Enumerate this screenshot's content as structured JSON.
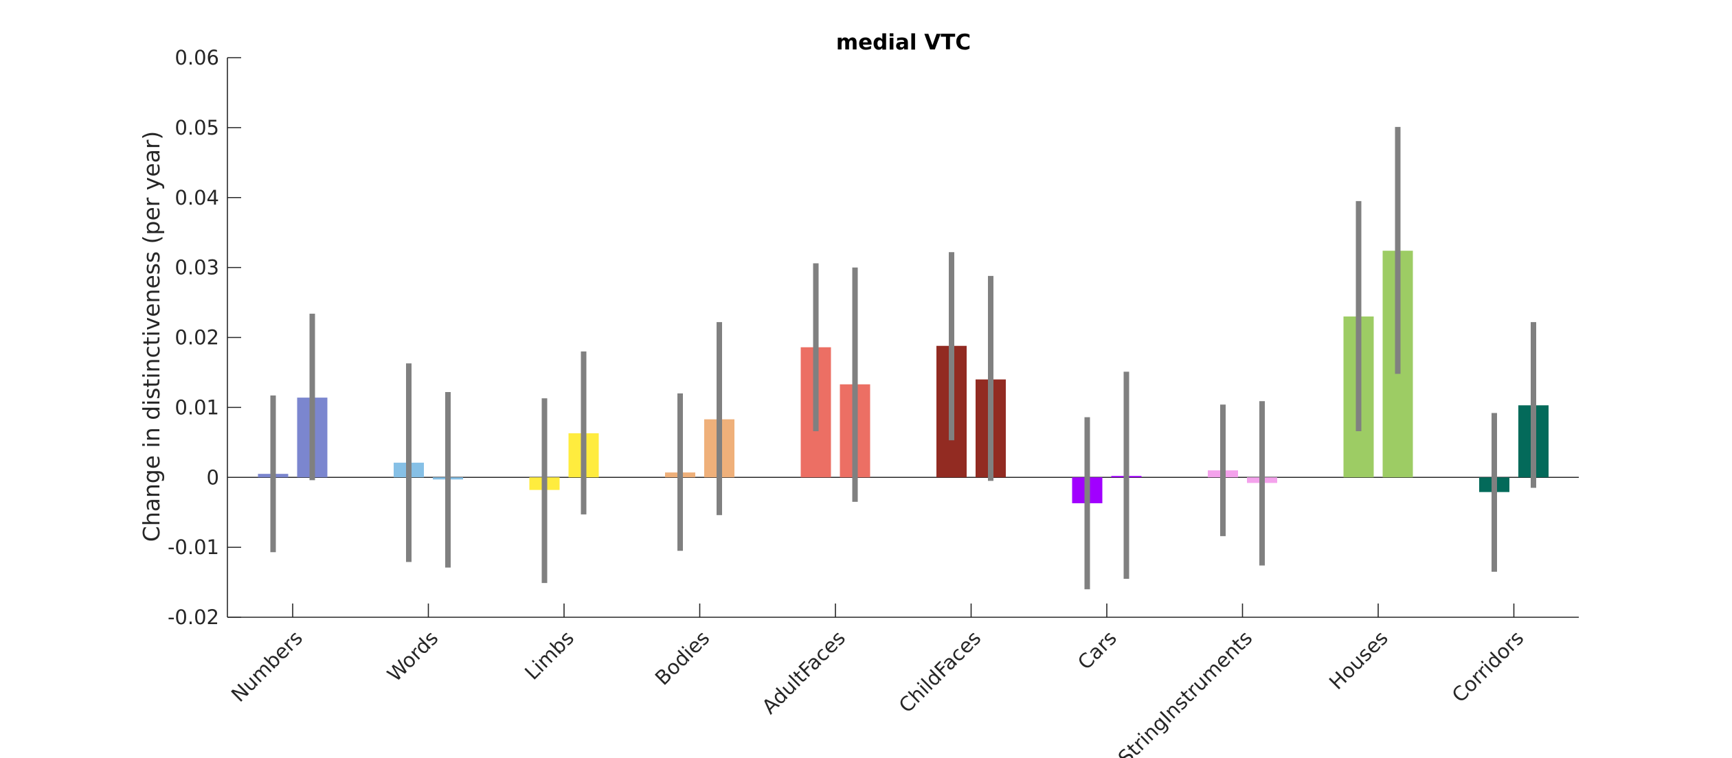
{
  "chart_data": {
    "type": "bar",
    "title": "medial VTC",
    "ylabel": "Change in distinctiveness (per year)",
    "xlabel": "",
    "ylim": [
      -0.02,
      0.06
    ],
    "yticks": [
      -0.02,
      -0.01,
      0,
      0.01,
      0.02,
      0.03,
      0.04,
      0.05,
      0.06
    ],
    "ytick_labels": [
      "-0.02",
      "-0.01",
      "0",
      "0.01",
      "0.02",
      "0.03",
      "0.04",
      "0.05",
      "0.06"
    ],
    "grid": false,
    "legend": "none",
    "categories": [
      "Numbers",
      "Words",
      "Limbs",
      "Bodies",
      "AdultFaces",
      "ChildFaces",
      "Cars",
      "StringInstruments",
      "Houses",
      "Corridors"
    ],
    "colors": [
      "#7b86cf",
      "#86c0e6",
      "#ffec3e",
      "#efb07a",
      "#ec6f64",
      "#922b22",
      "#a100ff",
      "#f4a2ec",
      "#9dcc64",
      "#036a5a"
    ],
    "error_bar_color": "#808080",
    "series": [
      {
        "values": [
          0.0005,
          0.0021,
          -0.0018,
          0.0007,
          0.0186,
          0.0188,
          -0.0037,
          0.001,
          0.023,
          -0.0021
        ],
        "err_low": [
          -0.0107,
          -0.0121,
          -0.0151,
          -0.0105,
          0.0066,
          0.0053,
          -0.016,
          -0.0084,
          0.0066,
          -0.0135
        ],
        "err_high": [
          0.0117,
          0.0163,
          0.0113,
          0.012,
          0.0306,
          0.0322,
          0.0086,
          0.0104,
          0.0395,
          0.0092
        ]
      },
      {
        "values": [
          0.0114,
          -0.0003,
          0.0063,
          0.0083,
          0.0133,
          0.014,
          0.0002,
          -0.0008,
          0.0324,
          0.0103
        ],
        "err_low": [
          -0.0004,
          -0.0129,
          -0.0053,
          -0.0054,
          -0.0035,
          -0.0005,
          -0.0145,
          -0.0126,
          0.0148,
          -0.0015
        ],
        "err_high": [
          0.0234,
          0.0122,
          0.018,
          0.0222,
          0.03,
          0.0288,
          0.0151,
          0.0109,
          0.0501,
          0.0222
        ]
      }
    ]
  }
}
